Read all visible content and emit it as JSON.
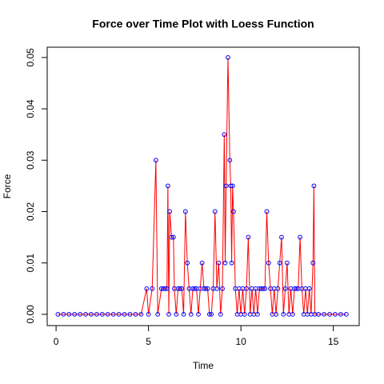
{
  "chart_data": {
    "type": "scatter",
    "title": "Force over Time Plot with Loess Function",
    "x_label": "Time",
    "y_label": "Force",
    "x": [
      0.1,
      0.4,
      0.7,
      1.0,
      1.3,
      1.6,
      1.9,
      2.2,
      2.5,
      2.8,
      3.1,
      3.4,
      3.7,
      4.0,
      4.3,
      4.6,
      4.9,
      5.0,
      5.2,
      5.4,
      5.5,
      5.7,
      5.8,
      5.9,
      6.0,
      6.05,
      6.1,
      6.15,
      6.25,
      6.35,
      6.4,
      6.5,
      6.6,
      6.7,
      6.8,
      6.9,
      7.0,
      7.1,
      7.2,
      7.3,
      7.4,
      7.5,
      7.6,
      7.7,
      7.8,
      7.9,
      8.0,
      8.1,
      8.2,
      8.3,
      8.4,
      8.5,
      8.6,
      8.7,
      8.8,
      8.9,
      9.0,
      9.1,
      9.15,
      9.2,
      9.3,
      9.4,
      9.45,
      9.5,
      9.55,
      9.6,
      9.7,
      9.8,
      9.9,
      10.0,
      10.1,
      10.2,
      10.3,
      10.4,
      10.5,
      10.6,
      10.7,
      10.8,
      10.9,
      11.0,
      11.1,
      11.2,
      11.3,
      11.4,
      11.5,
      11.6,
      11.7,
      11.8,
      11.9,
      12.0,
      12.1,
      12.2,
      12.3,
      12.4,
      12.5,
      12.6,
      12.7,
      12.8,
      12.9,
      13.0,
      13.1,
      13.2,
      13.3,
      13.4,
      13.5,
      13.6,
      13.7,
      13.8,
      13.9,
      13.95,
      14.0,
      14.2,
      14.5,
      14.8,
      15.1,
      15.4,
      15.7
    ],
    "values": [
      0,
      0,
      0,
      0,
      0,
      0,
      0,
      0,
      0,
      0,
      0,
      0,
      0,
      0,
      0,
      0,
      0.005,
      0,
      0.005,
      0.03,
      0,
      0.005,
      0.005,
      0.005,
      0.005,
      0.025,
      0,
      0.02,
      0.015,
      0.015,
      0.005,
      0,
      0.005,
      0.005,
      0.005,
      0,
      0.02,
      0.01,
      0.005,
      0,
      0.005,
      0.005,
      0.005,
      0,
      0.005,
      0.01,
      0.005,
      0.005,
      0.005,
      0,
      0,
      0.005,
      0.02,
      0.005,
      0.01,
      0,
      0.005,
      0.035,
      0.01,
      0.025,
      0.05,
      0.03,
      0.025,
      0.01,
      0.025,
      0.02,
      0.005,
      0,
      0.005,
      0,
      0.005,
      0,
      0.005,
      0.015,
      0,
      0.005,
      0,
      0.005,
      0,
      0.005,
      0.005,
      0.005,
      0.005,
      0.02,
      0.01,
      0.005,
      0,
      0.005,
      0,
      0.005,
      0.01,
      0.015,
      0,
      0.005,
      0.01,
      0,
      0.005,
      0,
      0.005,
      0.005,
      0.005,
      0.015,
      0.005,
      0,
      0.005,
      0,
      0.005,
      0,
      0.01,
      0.025,
      0,
      0,
      0,
      0,
      0,
      0,
      0
    ],
    "line_color": "#ff0000",
    "point_color": "#0000ff",
    "xlim": [
      -0.48,
      16.4
    ],
    "xticks": [
      0,
      5,
      10,
      15
    ],
    "ylim": [
      -0.0022,
      0.052
    ],
    "yticks": [
      {
        "value": 0,
        "label": "0.00"
      },
      {
        "value": 0.01,
        "label": "0.01"
      },
      {
        "value": 0.02,
        "label": "0.02"
      },
      {
        "value": 0.03,
        "label": "0.03"
      },
      {
        "value": 0.04,
        "label": "0.04"
      },
      {
        "value": 0.05,
        "label": "0.05"
      }
    ]
  }
}
